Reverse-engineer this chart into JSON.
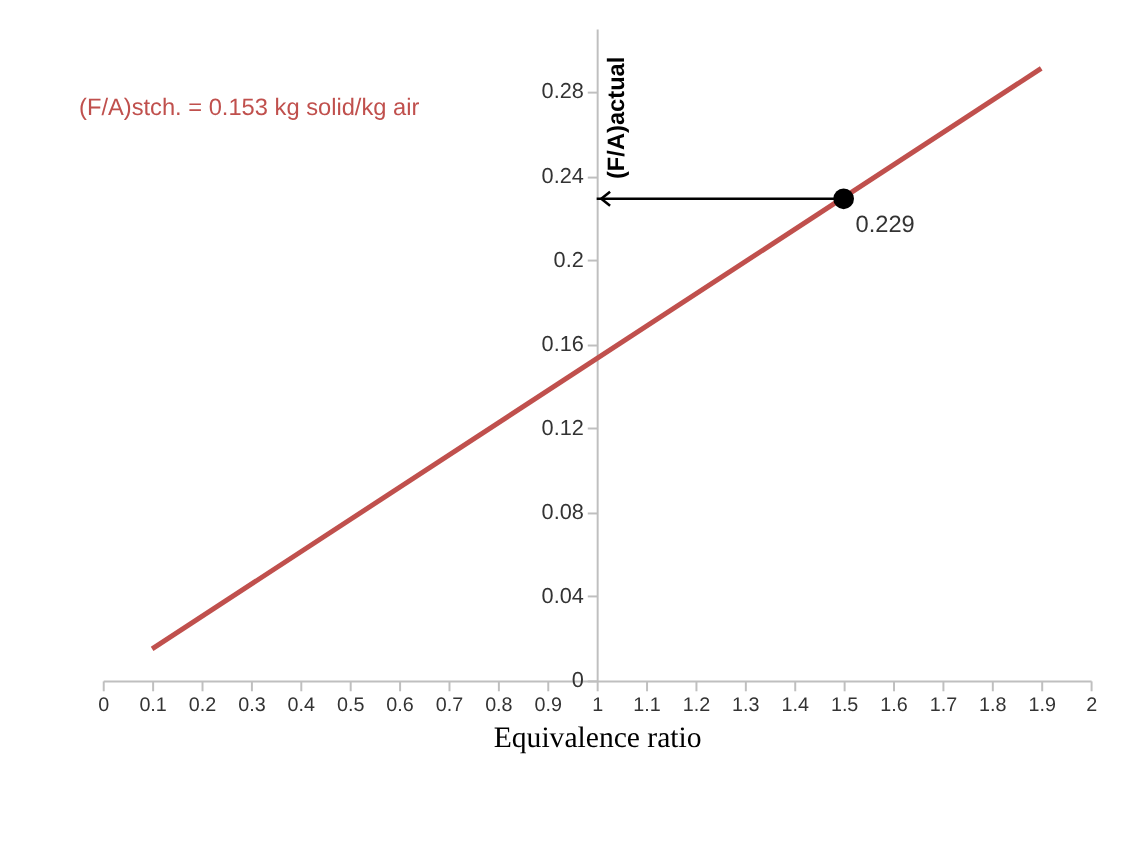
{
  "chart_data": {
    "type": "line",
    "xlabel": "Equivalence ratio",
    "annotations": [
      "(F/A)stch. = 0.153 kg solid/kg air",
      {
        "text": "(F/A)actual",
        "x": 1.5,
        "y": 0.229
      }
    ],
    "series": [
      {
        "color": "#c0504d",
        "x": [
          0.1,
          1.9
        ],
        "values": [
          0.015,
          0.291
        ]
      },
      {
        "type": "scatter",
        "color": "#000000",
        "marker": "circle",
        "x": [
          1.5
        ],
        "values": [
          0.229
        ],
        "value_labels": [
          "0.229"
        ]
      }
    ],
    "xlim": [
      0,
      2
    ],
    "ylim": [
      0,
      0.31
    ],
    "xticks": [
      0,
      0.1,
      0.2,
      0.3,
      0.4,
      0.5,
      0.6,
      0.7,
      0.8,
      0.9,
      1,
      1.1,
      1.2,
      1.3,
      1.4,
      1.5,
      1.6,
      1.7,
      1.8,
      1.9,
      2
    ],
    "yticks": [
      0,
      0.04,
      0.08,
      0.12,
      0.16,
      0.2,
      0.24,
      0.28
    ]
  }
}
